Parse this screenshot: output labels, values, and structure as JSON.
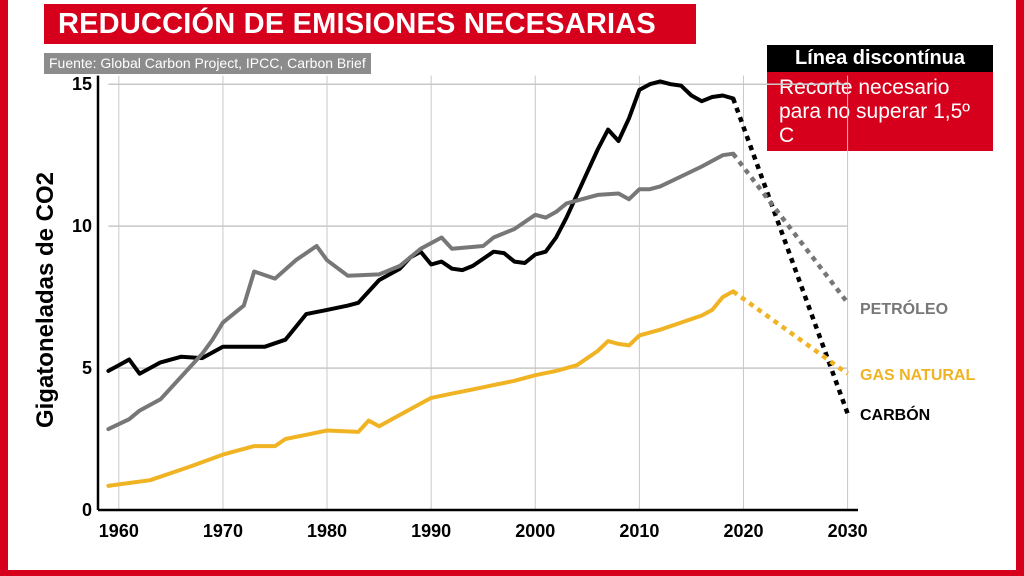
{
  "header": {
    "title": "REDUCCIÓN DE EMISIONES NECESARIAS",
    "source": "Fuente: Global Carbon Project, IPCC, Carbon Brief"
  },
  "legend": {
    "heading": "Línea discontínua",
    "body": "Recorte necesario para no superar 1,5º C"
  },
  "colors": {
    "accent": "#d6001c",
    "carbon": "#000000",
    "petroleo": "#777777",
    "gas": "#f0b323",
    "grid": "#c8c8c8"
  },
  "chart_data": {
    "type": "line",
    "title": "REDUCCIÓN DE EMISIONES NECESARIAS",
    "ylabel": "Gigatoneladas de CO2",
    "xlabel": "",
    "xlim": [
      1958,
      2031
    ],
    "ylim": [
      0,
      15.5
    ],
    "x_ticks": [
      1960,
      1970,
      1980,
      1990,
      2000,
      2010,
      2020,
      2030
    ],
    "y_ticks": [
      0,
      5,
      10,
      15
    ],
    "grid": "horizontal",
    "series": [
      {
        "name": "CARBÓN",
        "key": "carbon",
        "points": [
          [
            1959,
            4.9
          ],
          [
            1960,
            5.1
          ],
          [
            1961,
            5.3
          ],
          [
            1962,
            4.8
          ],
          [
            1964,
            5.2
          ],
          [
            1966,
            5.4
          ],
          [
            1968,
            5.35
          ],
          [
            1970,
            5.75
          ],
          [
            1972,
            5.75
          ],
          [
            1974,
            5.75
          ],
          [
            1976,
            6.0
          ],
          [
            1978,
            6.9
          ],
          [
            1980,
            7.05
          ],
          [
            1982,
            7.2
          ],
          [
            1983,
            7.3
          ],
          [
            1985,
            8.1
          ],
          [
            1986,
            8.3
          ],
          [
            1987,
            8.5
          ],
          [
            1988,
            8.9
          ],
          [
            1989,
            9.1
          ],
          [
            1990,
            8.65
          ],
          [
            1991,
            8.75
          ],
          [
            1992,
            8.5
          ],
          [
            1993,
            8.45
          ],
          [
            1994,
            8.6
          ],
          [
            1996,
            9.1
          ],
          [
            1997,
            9.05
          ],
          [
            1998,
            8.75
          ],
          [
            1999,
            8.7
          ],
          [
            2000,
            9.0
          ],
          [
            2001,
            9.1
          ],
          [
            2002,
            9.6
          ],
          [
            2003,
            10.3
          ],
          [
            2004,
            11.1
          ],
          [
            2005,
            11.9
          ],
          [
            2006,
            12.7
          ],
          [
            2007,
            13.4
          ],
          [
            2008,
            13.0
          ],
          [
            2009,
            13.8
          ],
          [
            2010,
            14.8
          ],
          [
            2011,
            15.0
          ],
          [
            2012,
            15.1
          ],
          [
            2013,
            15.0
          ],
          [
            2014,
            14.95
          ],
          [
            2015,
            14.6
          ],
          [
            2016,
            14.4
          ],
          [
            2017,
            14.55
          ],
          [
            2018,
            14.6
          ],
          [
            2019,
            14.5
          ]
        ],
        "projection": [
          [
            2019,
            14.5
          ],
          [
            2030,
            3.4
          ]
        ]
      },
      {
        "name": "PETRÓLEO",
        "key": "petroleo",
        "points": [
          [
            1959,
            2.85
          ],
          [
            1961,
            3.2
          ],
          [
            1962,
            3.5
          ],
          [
            1964,
            3.9
          ],
          [
            1966,
            4.7
          ],
          [
            1968,
            5.5
          ],
          [
            1969,
            6.0
          ],
          [
            1970,
            6.6
          ],
          [
            1972,
            7.2
          ],
          [
            1973,
            8.4
          ],
          [
            1975,
            8.15
          ],
          [
            1977,
            8.8
          ],
          [
            1979,
            9.3
          ],
          [
            1980,
            8.8
          ],
          [
            1982,
            8.25
          ],
          [
            1985,
            8.3
          ],
          [
            1987,
            8.6
          ],
          [
            1989,
            9.2
          ],
          [
            1991,
            9.6
          ],
          [
            1992,
            9.2
          ],
          [
            1995,
            9.3
          ],
          [
            1996,
            9.6
          ],
          [
            1998,
            9.9
          ],
          [
            2000,
            10.4
          ],
          [
            2001,
            10.3
          ],
          [
            2002,
            10.5
          ],
          [
            2003,
            10.8
          ],
          [
            2004,
            10.9
          ],
          [
            2006,
            11.1
          ],
          [
            2008,
            11.15
          ],
          [
            2009,
            10.95
          ],
          [
            2010,
            11.3
          ],
          [
            2011,
            11.3
          ],
          [
            2012,
            11.4
          ],
          [
            2014,
            11.75
          ],
          [
            2016,
            12.1
          ],
          [
            2018,
            12.5
          ],
          [
            2019,
            12.55
          ]
        ],
        "projection": [
          [
            2019,
            12.55
          ],
          [
            2030,
            7.3
          ]
        ]
      },
      {
        "name": "GAS NATURAL",
        "key": "gas",
        "points": [
          [
            1959,
            0.85
          ],
          [
            1961,
            0.95
          ],
          [
            1963,
            1.05
          ],
          [
            1965,
            1.3
          ],
          [
            1967,
            1.55
          ],
          [
            1970,
            1.95
          ],
          [
            1973,
            2.25
          ],
          [
            1975,
            2.25
          ],
          [
            1976,
            2.5
          ],
          [
            1978,
            2.65
          ],
          [
            1980,
            2.8
          ],
          [
            1983,
            2.75
          ],
          [
            1984,
            3.15
          ],
          [
            1985,
            2.95
          ],
          [
            1987,
            3.35
          ],
          [
            1989,
            3.75
          ],
          [
            1990,
            3.95
          ],
          [
            1992,
            4.1
          ],
          [
            1994,
            4.25
          ],
          [
            1996,
            4.4
          ],
          [
            1998,
            4.55
          ],
          [
            2000,
            4.75
          ],
          [
            2002,
            4.9
          ],
          [
            2004,
            5.1
          ],
          [
            2006,
            5.6
          ],
          [
            2007,
            5.95
          ],
          [
            2008,
            5.85
          ],
          [
            2009,
            5.8
          ],
          [
            2010,
            6.15
          ],
          [
            2012,
            6.35
          ],
          [
            2014,
            6.6
          ],
          [
            2016,
            6.85
          ],
          [
            2017,
            7.05
          ],
          [
            2018,
            7.5
          ],
          [
            2019,
            7.7
          ]
        ],
        "projection": [
          [
            2019,
            7.7
          ],
          [
            2030,
            4.8
          ]
        ]
      }
    ]
  }
}
